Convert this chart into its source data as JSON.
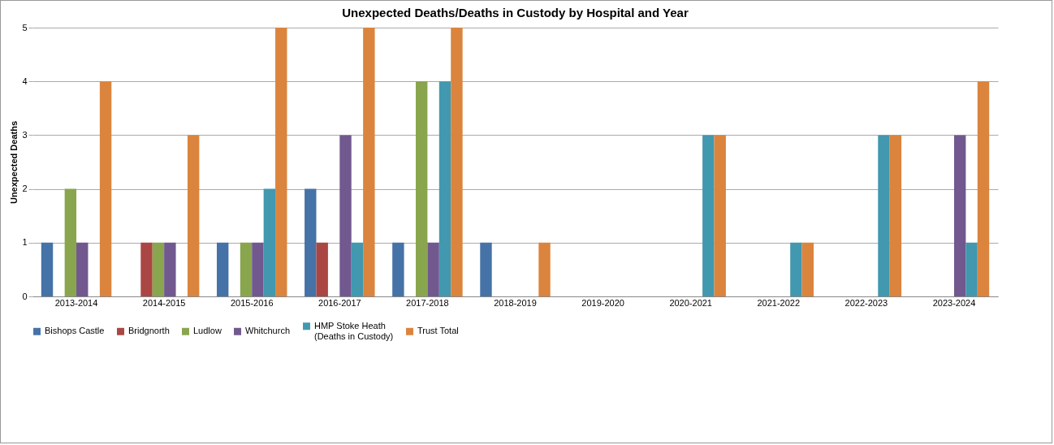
{
  "chart_data": {
    "type": "bar",
    "title": "Unexpected Deaths/Deaths in Custody by Hospital and Year",
    "ylabel": "Unexpected Deaths",
    "categories": [
      "2013-2014",
      "2014-2015",
      "2015-2016",
      "2016-2017",
      "2017-2018",
      "2018-2019",
      "2019-2020",
      "2020-2021",
      "2021-2022",
      "2022-2023",
      "2023-2024"
    ],
    "series": [
      {
        "name": "Bishops Castle",
        "color": "#4572a7",
        "values": [
          1,
          0,
          1,
          2,
          1,
          1,
          0,
          0,
          0,
          0,
          0
        ]
      },
      {
        "name": "Bridgnorth",
        "color": "#aa4643",
        "values": [
          0,
          1,
          0,
          1,
          0,
          0,
          0,
          0,
          0,
          0,
          0
        ]
      },
      {
        "name": "Ludlow",
        "color": "#89a54e",
        "values": [
          2,
          1,
          1,
          0,
          4,
          0,
          0,
          0,
          0,
          0,
          0
        ]
      },
      {
        "name": "Whitchurch",
        "color": "#71588f",
        "values": [
          1,
          1,
          1,
          3,
          1,
          0,
          0,
          0,
          0,
          0,
          3
        ]
      },
      {
        "name": "HMP Stoke Heath\n(Deaths in Custody)",
        "color": "#4198af",
        "values": [
          0,
          0,
          2,
          1,
          4,
          0,
          0,
          3,
          1,
          3,
          1
        ]
      },
      {
        "name": "Trust Total",
        "color": "#db843d",
        "values": [
          4,
          3,
          5,
          5,
          5,
          1,
          0,
          3,
          1,
          3,
          4
        ]
      }
    ],
    "ylim": [
      0,
      5
    ],
    "yticks": [
      0,
      1,
      2,
      3,
      4,
      5
    ],
    "grid": "y",
    "legend": "bottom"
  }
}
